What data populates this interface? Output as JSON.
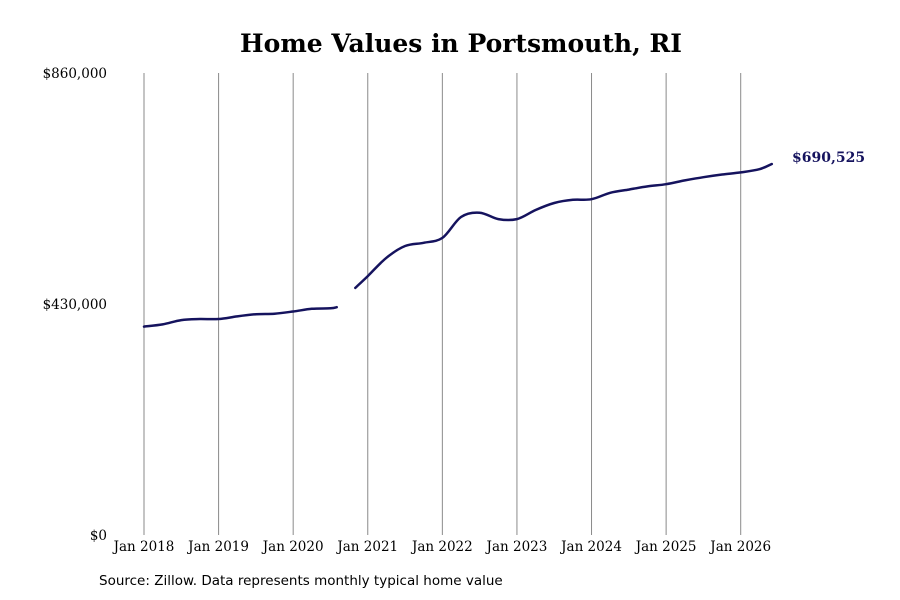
{
  "chart_data": {
    "type": "line",
    "title": "Home Values in Portsmouth, RI",
    "xlabel": "",
    "ylabel": "",
    "y_ticks": [
      {
        "value": 860000,
        "label": "$860,000"
      },
      {
        "value": 430000,
        "label": "$430,000"
      },
      {
        "value": 0,
        "label": "$0"
      }
    ],
    "ylim": [
      0,
      860000
    ],
    "x_ticks": [
      "Jan 2018",
      "Jan 2019",
      "Jan 2020",
      "Jan 2021",
      "Jan 2022",
      "Jan 2023",
      "Jan 2024",
      "Jan 2025",
      "Jan 2026"
    ],
    "xlim": [
      "2018-01",
      "2026-07"
    ],
    "grid": "vertical",
    "line_color": "#15135e",
    "end_label": {
      "text": "$690,525",
      "color": "#15135e"
    },
    "series": [
      {
        "segments": [
          {
            "x": [
              "2018-01",
              "2018-04",
              "2018-07",
              "2018-10",
              "2019-01",
              "2019-04",
              "2019-07",
              "2019-10",
              "2020-01",
              "2020-04",
              "2020-07",
              "2020-08"
            ],
            "values": [
              388000,
              392000,
              400000,
              402000,
              402000,
              407000,
              411000,
              412000,
              416000,
              421000,
              422000,
              424000
            ]
          },
          {
            "x": [
              "2020-11",
              "2021-01",
              "2021-04",
              "2021-07",
              "2021-10",
              "2022-01",
              "2022-04",
              "2022-07",
              "2022-10",
              "2023-01",
              "2023-04",
              "2023-07",
              "2023-10",
              "2024-01",
              "2024-04",
              "2024-07",
              "2024-10",
              "2025-01",
              "2025-04",
              "2025-07",
              "2025-10",
              "2026-01",
              "2026-04",
              "2026-06"
            ],
            "values": [
              460000,
              482000,
              516000,
              538000,
              544000,
              553000,
              592000,
              600000,
              588000,
              588000,
              605000,
              618000,
              624000,
              625000,
              637000,
              643000,
              649000,
              653000,
              660000,
              666000,
              671000,
              675000,
              681000,
              690525
            ]
          }
        ]
      }
    ]
  },
  "footer": {
    "source": "Source: Zillow. Data represents monthly typical home value"
  }
}
